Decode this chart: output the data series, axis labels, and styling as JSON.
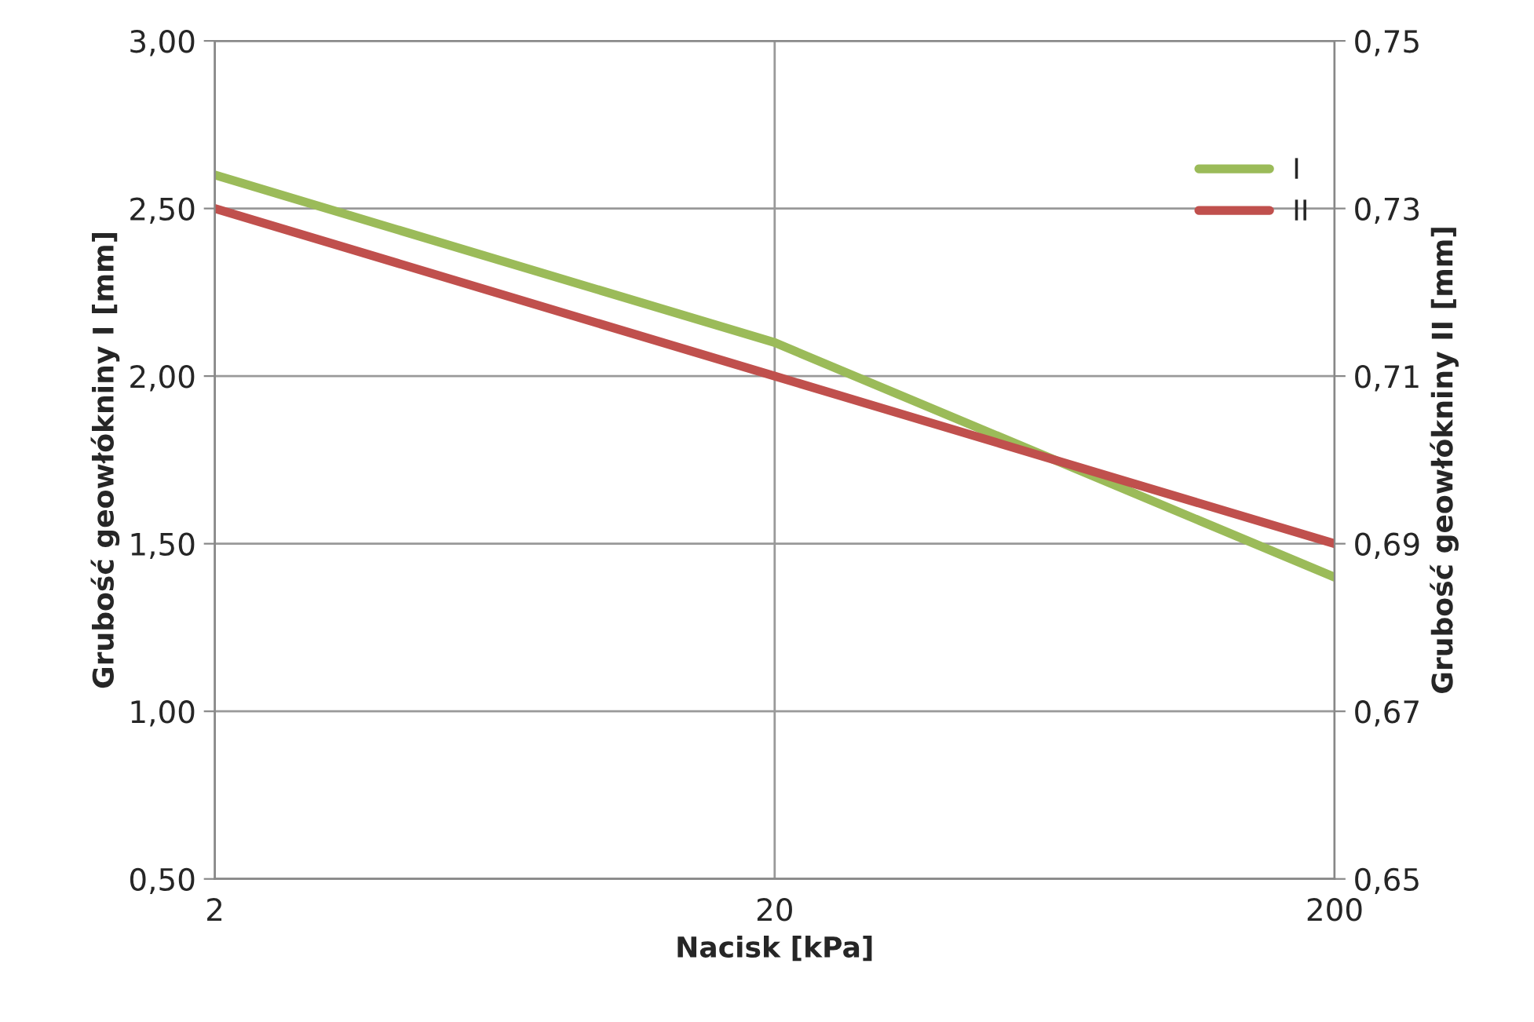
{
  "chart_data": {
    "type": "line",
    "xlabel": "Nacisk [kPa]",
    "ylabel": "Grubość geowłókniny I [mm]",
    "y2label": "Grubość geowłókniny II [mm]",
    "x": [
      2,
      20,
      200
    ],
    "log": "x",
    "xlim": [
      2,
      200
    ],
    "xticks": [
      2,
      20,
      200
    ],
    "ylim": [
      0.5,
      3.0
    ],
    "yticks": [
      {
        "value": 0.5,
        "label": "0,50"
      },
      {
        "value": 1.0,
        "label": "1,00"
      },
      {
        "value": 1.5,
        "label": "1,50"
      },
      {
        "value": 2.0,
        "label": "2,00"
      },
      {
        "value": 2.5,
        "label": "2,50"
      },
      {
        "value": 3.0,
        "label": "3,00"
      }
    ],
    "y2lim": [
      0.65,
      0.75
    ],
    "y2ticks": [
      {
        "value": 0.65,
        "label": "0,65"
      },
      {
        "value": 0.67,
        "label": "0,67"
      },
      {
        "value": 0.69,
        "label": "0,69"
      },
      {
        "value": 0.71,
        "label": "0,71"
      },
      {
        "value": 0.73,
        "label": "0,73"
      },
      {
        "value": 0.75,
        "label": "0,75"
      }
    ],
    "series": [
      {
        "name": "I",
        "color": "#9bbb59",
        "values": [
          2.6,
          2.1,
          1.4
        ]
      },
      {
        "name": "II",
        "color": "#c0504d",
        "values": [
          0.73,
          0.71,
          0.69
        ],
        "axis": "y2"
      }
    ],
    "grid": true,
    "legend": "right",
    "marker": "none",
    "line_style": "solid"
  }
}
